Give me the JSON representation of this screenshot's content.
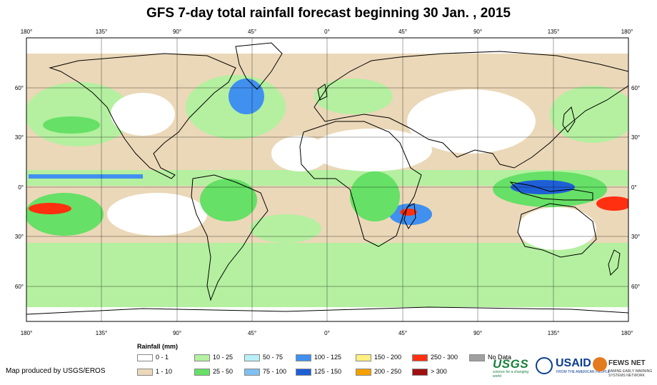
{
  "title": "GFS 7-day total rainfall forecast beginning 30 Jan. , 2015",
  "map": {
    "projection": "equirectangular",
    "lon_ticks_top": [
      "180°",
      "135°",
      "90°",
      "45°",
      "0°",
      "45°",
      "90°",
      "135°",
      "180°"
    ],
    "lon_ticks_bottom": [
      "180°",
      "135°",
      "90°",
      "45°",
      "0°",
      "45°",
      "90°",
      "135°",
      "180°"
    ],
    "lat_ticks_left": [
      "60°",
      "30°",
      "0°",
      "30°",
      "60°"
    ],
    "lat_ticks_right": [
      "60°",
      "30°",
      "0°",
      "30°",
      "60°"
    ],
    "colors": {
      "ocean_light": "#e9d9be",
      "dry": "#ffffff",
      "green_light": "#a8f0a0",
      "green": "#66e066",
      "blue_light": "#9fd5f5",
      "blue": "#3a8fe8",
      "blue_dark": "#1f5fd6",
      "red": "#e83010",
      "orange": "#f5a000",
      "land_outline": "#000000"
    }
  },
  "legend": {
    "title": "Rainfall (mm)",
    "items": [
      {
        "label": "0 - 1",
        "color": "#ffffff"
      },
      {
        "label": "1 - 10",
        "color": "#ebd8b8"
      },
      {
        "label": "10 - 25",
        "color": "#b4f0a0"
      },
      {
        "label": "25 - 50",
        "color": "#66e066"
      },
      {
        "label": "50 - 75",
        "color": "#b8f0f8"
      },
      {
        "label": "75 - 100",
        "color": "#80c0f0"
      },
      {
        "label": "100 - 125",
        "color": "#4090f0"
      },
      {
        "label": "125 - 150",
        "color": "#1f5fd6"
      },
      {
        "label": "150 - 200",
        "color": "#fff080"
      },
      {
        "label": "200 - 250",
        "color": "#f5a000"
      },
      {
        "label": "250 - 300",
        "color": "#ff3010"
      },
      {
        "label": "> 300",
        "color": "#a01010"
      },
      {
        "label": "No Data",
        "color": "#a0a0a0"
      }
    ]
  },
  "credit": "Map produced by USGS/EROS",
  "logos": {
    "usgs": "USGS",
    "usgs_tagline": "science for a changing world",
    "usaid": "USAID",
    "usaid_tagline": "FROM THE AMERICAN PEOPLE",
    "fews": "FEWS NET",
    "fews_tagline": "FAMINE EARLY WARNING SYSTEMS NETWORK"
  }
}
